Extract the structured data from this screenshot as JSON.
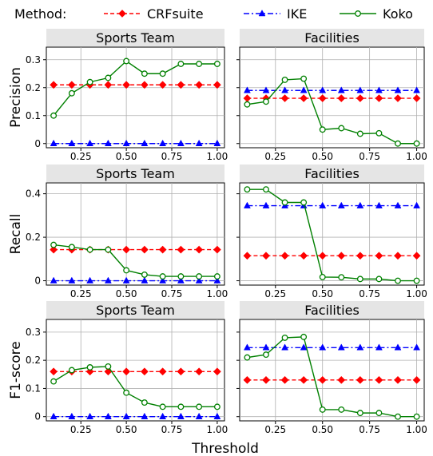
{
  "legend": {
    "title": "Method:",
    "entries": [
      "CRFsuite",
      "IKE",
      "Koko"
    ]
  },
  "colors": {
    "CRFsuite": "#ff0000",
    "IKE": "#0000ff",
    "Koko": "#008000",
    "panel_header": "#e5e5e5",
    "grid": "#b0b0b0"
  },
  "xlabel": "Threshold",
  "ylabels": [
    "Precision",
    "Recall",
    "F1-score"
  ],
  "columns": [
    "Sports Team",
    "Facilities"
  ],
  "chart_data": {
    "type": "line",
    "grid": true,
    "legend_position": "top",
    "x": [
      0.1,
      0.2,
      0.3,
      0.4,
      0.5,
      0.6,
      0.7,
      0.8,
      0.9,
      1.0
    ],
    "xticks": [
      "0.25",
      "0.50",
      "0.75",
      "1.00"
    ],
    "xlim": [
      0.06,
      1.04
    ],
    "panels": [
      {
        "row": 0,
        "col": 0,
        "title": "Sports Team",
        "ylabel": "Precision",
        "ylim": [
          -0.015,
          0.345
        ],
        "yticks": [
          "0",
          "0.1",
          "0.2",
          "0.3"
        ],
        "series": [
          {
            "name": "CRFsuite",
            "values": [
              0.21,
              0.21,
              0.21,
              0.21,
              0.21,
              0.21,
              0.21,
              0.21,
              0.21,
              0.21
            ]
          },
          {
            "name": "IKE",
            "values": [
              0.0,
              0.0,
              0.0,
              0.0,
              0.0,
              0.0,
              0.0,
              0.0,
              0.0,
              0.0
            ]
          },
          {
            "name": "Koko",
            "values": [
              0.1,
              0.18,
              0.22,
              0.235,
              0.295,
              0.25,
              0.25,
              0.285,
              0.285,
              0.285
            ]
          }
        ]
      },
      {
        "row": 0,
        "col": 1,
        "title": "Facilities",
        "ylabel": "Precision",
        "ylim": [
          -0.015,
          0.345
        ],
        "yticks": [
          "0",
          "0.1",
          "0.2",
          "0.3"
        ],
        "series": [
          {
            "name": "CRFsuite",
            "values": [
              0.162,
              0.162,
              0.162,
              0.162,
              0.162,
              0.162,
              0.162,
              0.162,
              0.162,
              0.162
            ]
          },
          {
            "name": "IKE",
            "values": [
              0.19,
              0.19,
              0.19,
              0.19,
              0.19,
              0.19,
              0.19,
              0.19,
              0.19,
              0.19
            ]
          },
          {
            "name": "Koko",
            "values": [
              0.14,
              0.15,
              0.228,
              0.232,
              0.05,
              0.055,
              0.035,
              0.037,
              0.0,
              0.0
            ]
          }
        ]
      },
      {
        "row": 1,
        "col": 0,
        "title": "Sports Team",
        "ylabel": "Recall",
        "ylim": [
          -0.02,
          0.45
        ],
        "yticks": [
          "0",
          "0.2",
          "0.4"
        ],
        "series": [
          {
            "name": "CRFsuite",
            "values": [
              0.143,
              0.143,
              0.143,
              0.143,
              0.143,
              0.143,
              0.143,
              0.143,
              0.143,
              0.143
            ]
          },
          {
            "name": "IKE",
            "values": [
              0.0,
              0.0,
              0.0,
              0.0,
              0.0,
              0.0,
              0.0,
              0.0,
              0.0,
              0.0
            ]
          },
          {
            "name": "Koko",
            "values": [
              0.165,
              0.155,
              0.143,
              0.143,
              0.048,
              0.028,
              0.02,
              0.02,
              0.02,
              0.02
            ]
          }
        ]
      },
      {
        "row": 1,
        "col": 1,
        "title": "Facilities",
        "ylabel": "Recall",
        "ylim": [
          -0.02,
          0.45
        ],
        "yticks": [
          "0",
          "0.2",
          "0.4"
        ],
        "series": [
          {
            "name": "CRFsuite",
            "values": [
              0.115,
              0.115,
              0.115,
              0.115,
              0.115,
              0.115,
              0.115,
              0.115,
              0.115,
              0.115
            ]
          },
          {
            "name": "IKE",
            "values": [
              0.345,
              0.345,
              0.345,
              0.345,
              0.345,
              0.345,
              0.345,
              0.345,
              0.345,
              0.345
            ]
          },
          {
            "name": "Koko",
            "values": [
              0.42,
              0.42,
              0.36,
              0.36,
              0.017,
              0.016,
              0.008,
              0.008,
              0.0,
              0.0
            ]
          }
        ]
      },
      {
        "row": 2,
        "col": 0,
        "title": "Sports Team",
        "ylabel": "F1-score",
        "ylim": [
          -0.015,
          0.345
        ],
        "yticks": [
          "0",
          "0.1",
          "0.2",
          "0.3"
        ],
        "series": [
          {
            "name": "CRFsuite",
            "values": [
              0.16,
              0.16,
              0.16,
              0.16,
              0.16,
              0.16,
              0.16,
              0.16,
              0.16,
              0.16
            ]
          },
          {
            "name": "IKE",
            "values": [
              0.0,
              0.0,
              0.0,
              0.0,
              0.0,
              0.0,
              0.0,
              0.0,
              0.0,
              0.0
            ]
          },
          {
            "name": "Koko",
            "values": [
              0.125,
              0.165,
              0.175,
              0.178,
              0.085,
              0.05,
              0.035,
              0.035,
              0.035,
              0.035
            ]
          }
        ]
      },
      {
        "row": 2,
        "col": 1,
        "title": "Facilities",
        "ylabel": "F1-score",
        "ylim": [
          -0.015,
          0.345
        ],
        "yticks": [
          "0",
          "0.1",
          "0.2",
          "0.3"
        ],
        "series": [
          {
            "name": "CRFsuite",
            "values": [
              0.13,
              0.13,
              0.13,
              0.13,
              0.13,
              0.13,
              0.13,
              0.13,
              0.13,
              0.13
            ]
          },
          {
            "name": "IKE",
            "values": [
              0.245,
              0.245,
              0.245,
              0.245,
              0.245,
              0.245,
              0.245,
              0.245,
              0.245,
              0.245
            ]
          },
          {
            "name": "Koko",
            "values": [
              0.21,
              0.22,
              0.28,
              0.283,
              0.025,
              0.025,
              0.013,
              0.013,
              0.0,
              0.0
            ]
          }
        ]
      }
    ]
  }
}
